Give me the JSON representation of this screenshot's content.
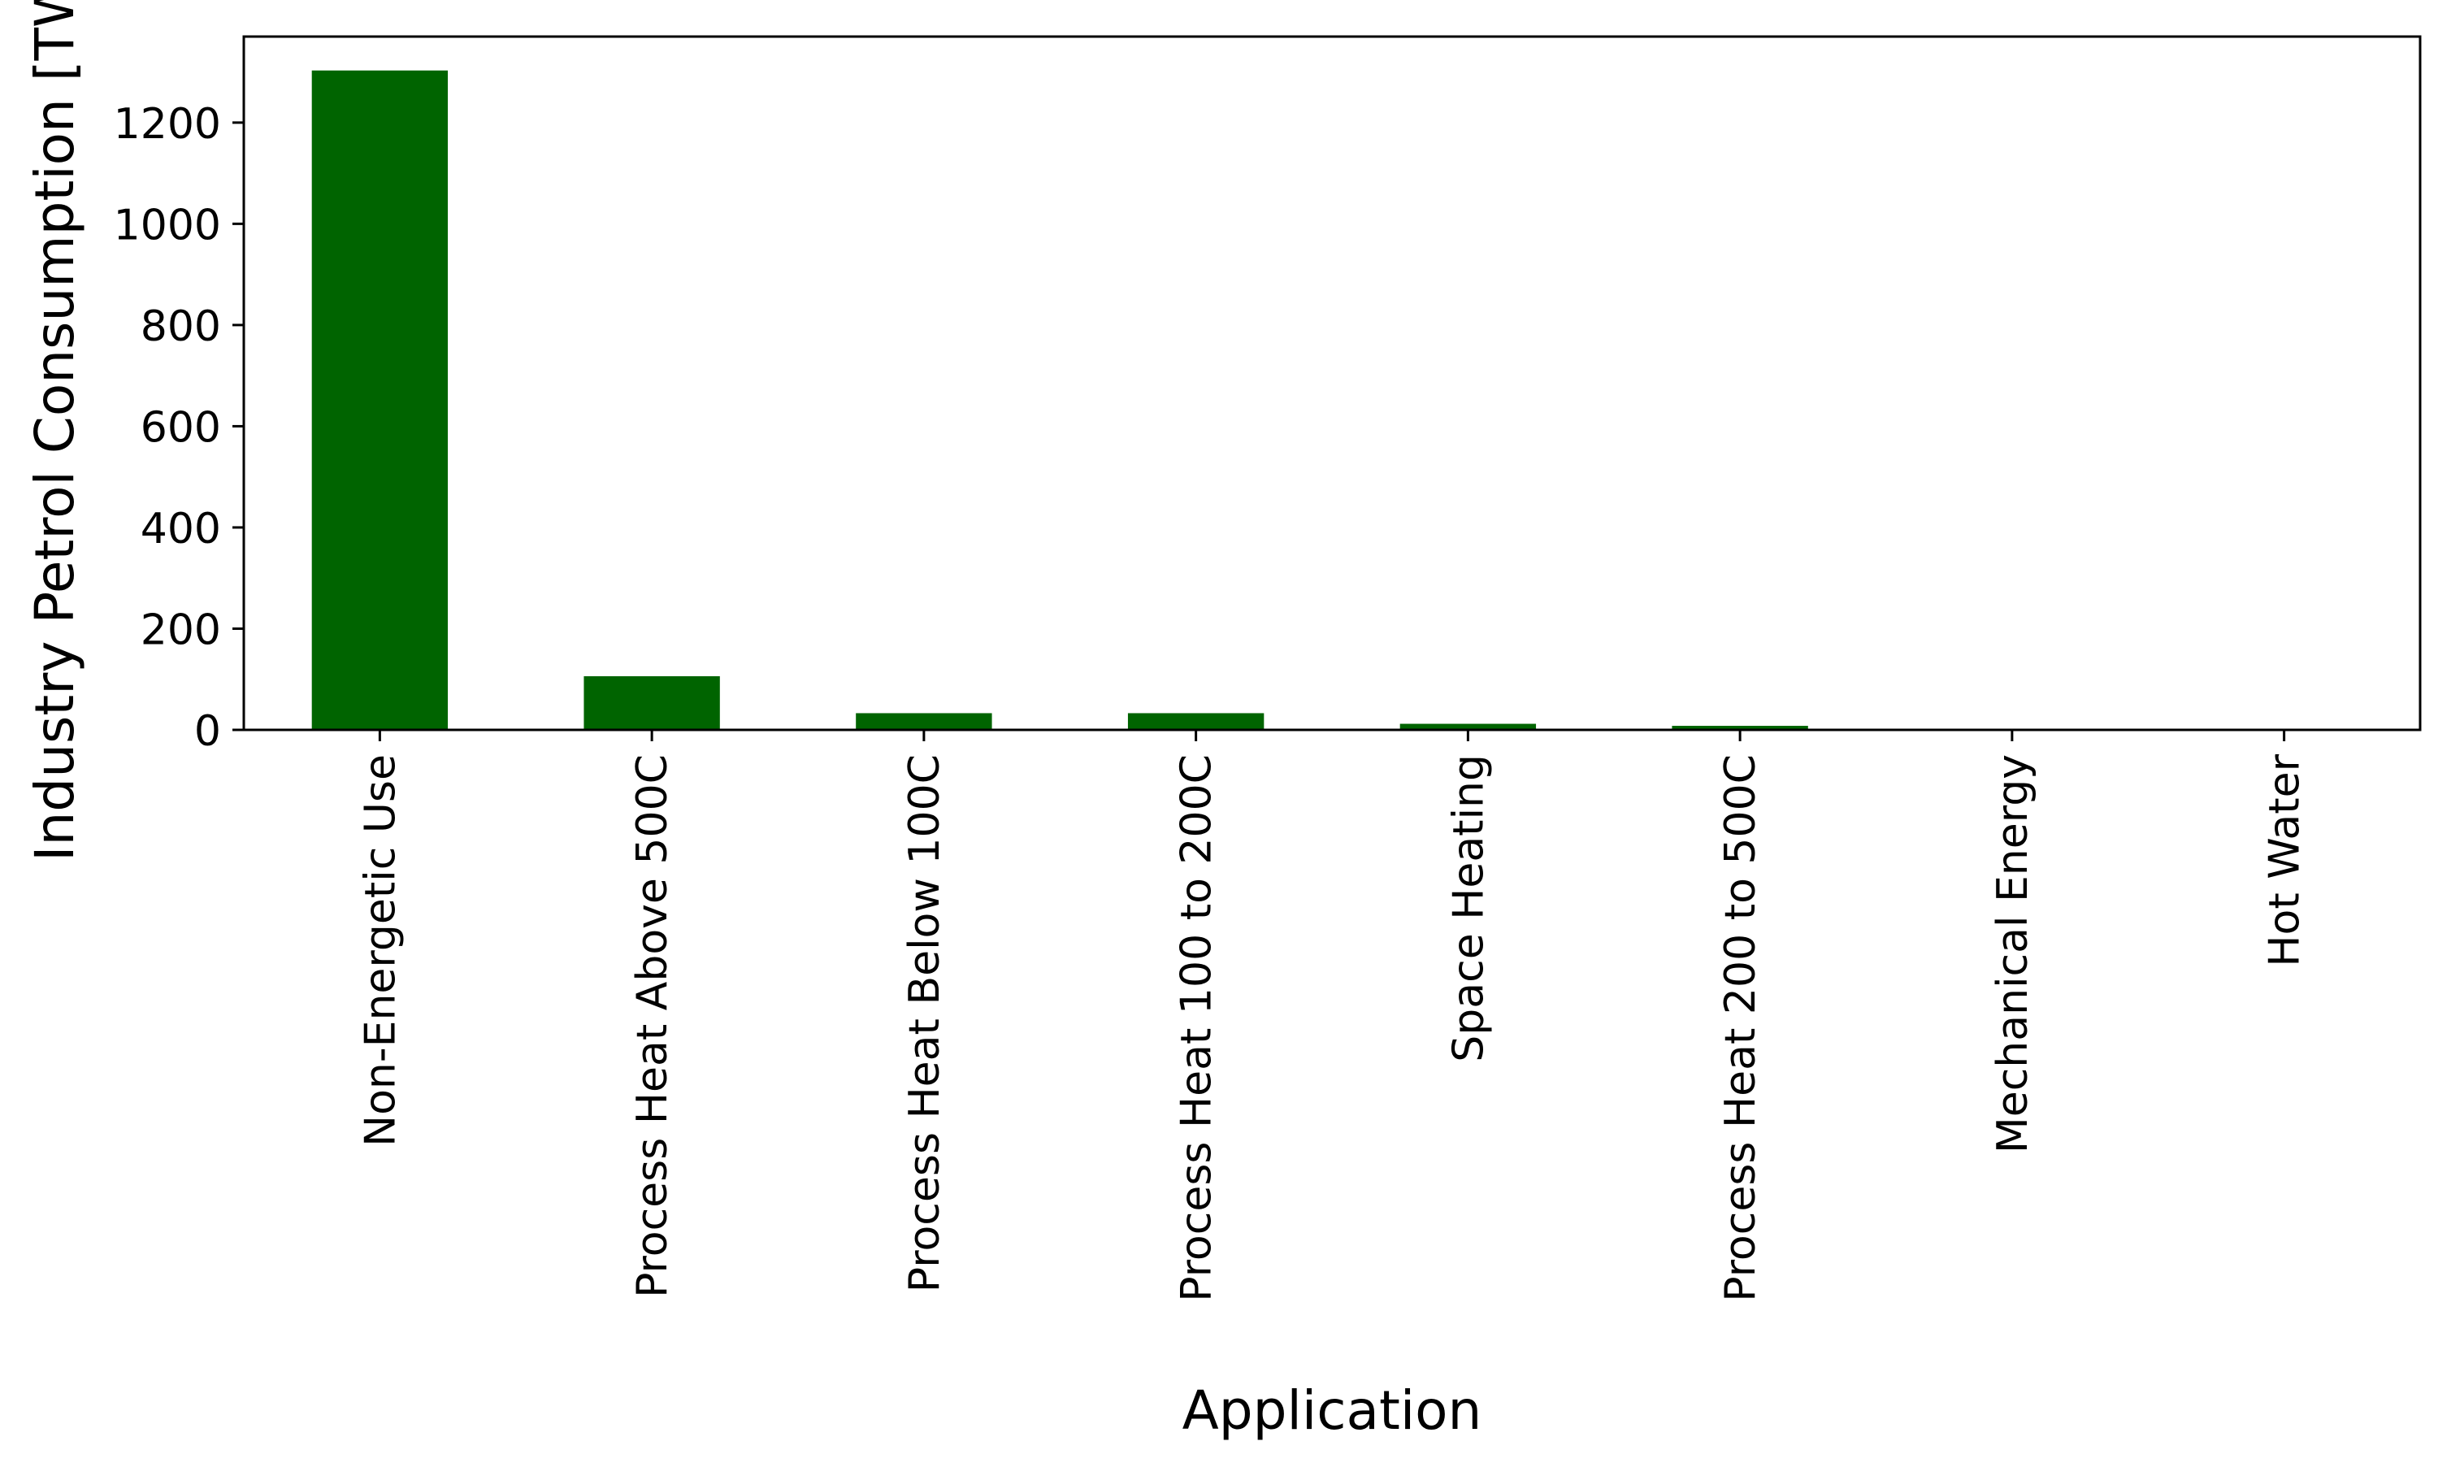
{
  "chart_data": {
    "type": "bar",
    "title": "",
    "xlabel": "Application",
    "ylabel": "Industry Petrol Consumption [TWh]",
    "categories": [
      "Non-Energetic Use",
      "Process Heat Above 500C",
      "Process Heat Below 100C",
      "Process Heat 100 to 200C",
      "Space Heating",
      "Process Heat 200 to 500C",
      "Mechanical Energy",
      "Hot Water"
    ],
    "values": [
      1303,
      106,
      33,
      33,
      12,
      8,
      0,
      0
    ],
    "ylim": [
      0,
      1370
    ],
    "yticks": [
      0,
      200,
      400,
      600,
      800,
      1000,
      1200
    ],
    "ytick_labels": [
      "0",
      "200",
      "400",
      "600",
      "800",
      "1000",
      "1200"
    ],
    "grid": false,
    "legend": "none",
    "bar_color": "#006400"
  }
}
